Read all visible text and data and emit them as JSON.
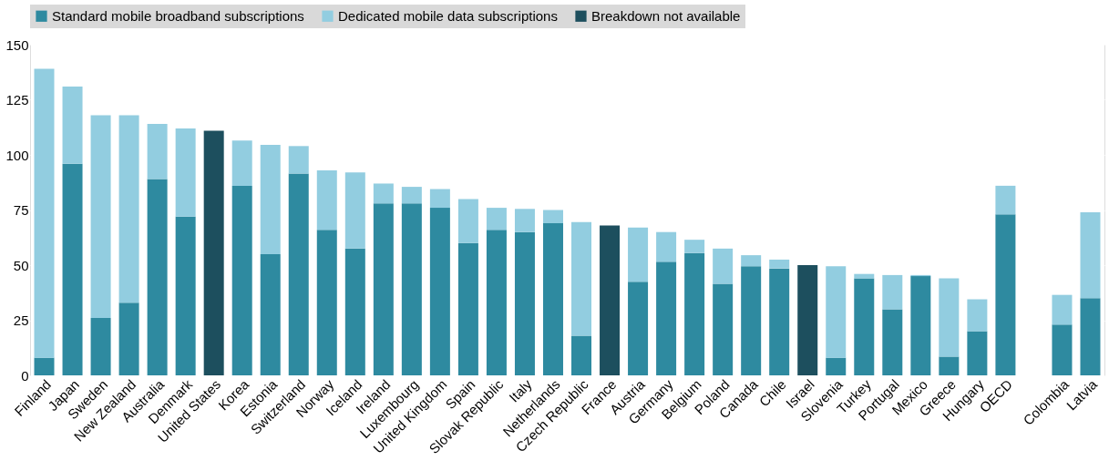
{
  "chart_data": {
    "type": "bar",
    "stacked": true,
    "legend": "top",
    "grid": "y",
    "ylim": [
      0,
      150
    ],
    "yticks": [
      0,
      25,
      50,
      75,
      100,
      125,
      150
    ],
    "categories": [
      "Finland",
      "Japan",
      "Sweden",
      "New Zealand",
      "Australia",
      "Denmark",
      "United States",
      "Korea",
      "Estonia",
      "Switzerland",
      "Norway",
      "Iceland",
      "Ireland",
      "Luxembourg",
      "United Kingdom",
      "Spain",
      "Slovak Republic",
      "Italy",
      "Netherlands",
      "Czech Republic",
      "France",
      "Austria",
      "Germany",
      "Belgium",
      "Poland",
      "Canada",
      "Chile",
      "Israel",
      "Slovenia",
      "Turkey",
      "Portugal",
      "Mexico",
      "Greece",
      "Hungary",
      "OECD",
      null,
      "Colombia",
      "Latvia"
    ],
    "series": [
      {
        "name": "Standard mobile broadband subscriptions",
        "color": "#2e8aa0",
        "values": [
          8,
          96,
          26,
          33,
          89,
          72,
          null,
          86,
          55,
          91.5,
          66,
          57.5,
          78,
          78,
          76,
          60,
          66,
          65,
          69,
          18,
          null,
          42.5,
          51.5,
          55.5,
          41.5,
          49.5,
          48.5,
          null,
          8,
          44,
          30,
          45,
          8.5,
          20,
          73,
          null,
          23,
          35
        ]
      },
      {
        "name": "Dedicated mobile data subscriptions",
        "color": "#92cde0",
        "values": [
          131,
          35,
          92,
          85,
          25,
          40,
          null,
          20.5,
          49.5,
          12.5,
          27,
          34.5,
          9,
          7.5,
          8.5,
          20,
          10,
          10.5,
          6,
          51.5,
          null,
          24.5,
          13.5,
          6,
          16,
          5,
          4,
          null,
          41.5,
          2,
          15.5,
          0.5,
          35.5,
          14.5,
          13,
          null,
          13.5,
          39
        ]
      },
      {
        "name": "Breakdown not available",
        "color": "#1d4f5e",
        "values": [
          null,
          null,
          null,
          null,
          null,
          null,
          111,
          null,
          null,
          null,
          null,
          null,
          null,
          null,
          null,
          null,
          null,
          null,
          null,
          null,
          68,
          null,
          null,
          null,
          null,
          null,
          null,
          50,
          null,
          null,
          null,
          null,
          null,
          null,
          null,
          null,
          null,
          null
        ]
      }
    ]
  }
}
